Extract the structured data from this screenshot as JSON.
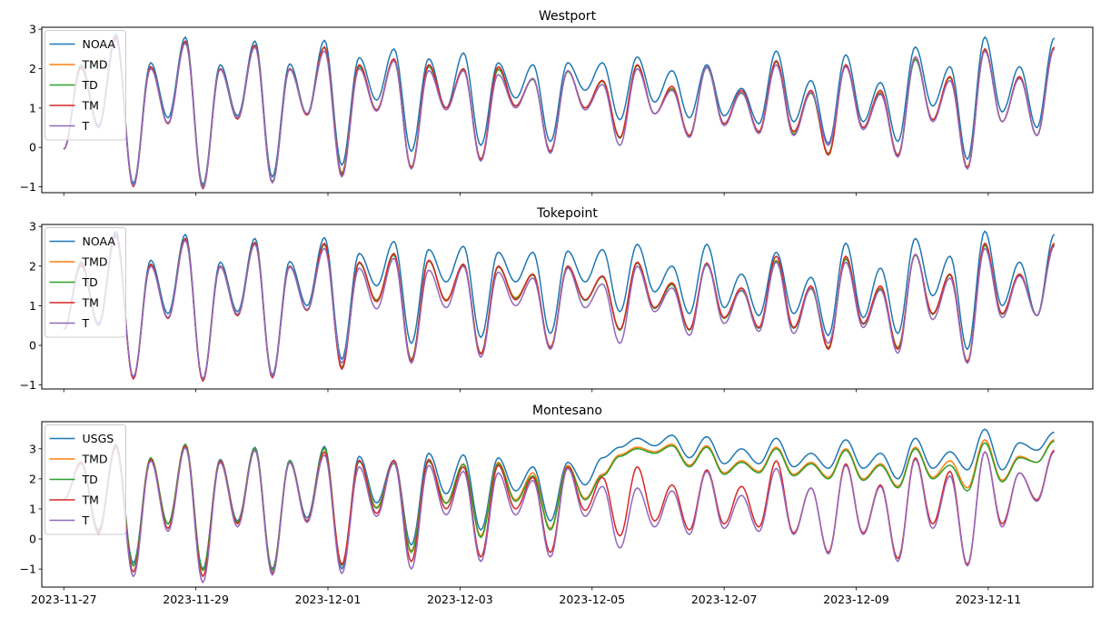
{
  "chart_data": [
    {
      "type": "line",
      "title": "Westport",
      "ylim": [
        -1.15,
        3.05
      ],
      "yticks": [
        -1,
        0,
        1,
        2,
        3
      ],
      "xlim": [
        "2023-11-26T16:00",
        "2023-12-12T14:00"
      ],
      "x_range": [
        "2023-11-27T00:00",
        "2023-12-12T00:00"
      ],
      "xtick_labels_shown": false,
      "legend_placement": "upper left",
      "colors": {
        "NOAA": "#1f77b4",
        "TMD": "#ff7f0e",
        "TD": "#2ca02c",
        "TM": "#d62728",
        "T": "#9467bd"
      },
      "series": [
        {
          "name": "NOAA",
          "peaks": [
            2.1,
            2.88,
            2.15,
            2.8,
            2.1,
            2.7,
            2.12,
            2.72,
            2.28,
            2.5,
            2.25,
            2.4,
            2.15,
            2.1,
            2.15,
            2.15,
            2.3,
            1.95,
            2.1,
            1.5,
            2.45,
            1.7,
            2.35,
            1.65,
            2.55,
            2.05,
            2.8,
            2.05,
            2.78
          ],
          "troughs": [
            -0.05,
            0.55,
            -0.92,
            0.75,
            -0.95,
            0.8,
            -0.75,
            0.85,
            -0.45,
            1.2,
            -0.1,
            1.0,
            0.05,
            1.25,
            0.15,
            1.45,
            0.7,
            1.15,
            0.75,
            0.8,
            0.6,
            0.65,
            0.1,
            0.65,
            0.15,
            1.05,
            -0.3,
            0.9,
            0.5
          ]
        },
        {
          "name": "TMD",
          "peaks": [
            2.05,
            2.8,
            2.05,
            2.7,
            2.0,
            2.6,
            2.0,
            2.55,
            2.1,
            2.25,
            2.1,
            2.0,
            2.0,
            1.75,
            1.95,
            1.7,
            2.1,
            1.5,
            2.05,
            1.4,
            2.2,
            1.4,
            2.1,
            1.4,
            2.25,
            1.8,
            2.5,
            1.8,
            2.55
          ],
          "troughs": [
            -0.05,
            0.5,
            -0.98,
            0.6,
            -1.0,
            0.72,
            -0.88,
            0.82,
            -0.65,
            0.95,
            -0.5,
            1.0,
            -0.3,
            1.05,
            -0.1,
            1.0,
            0.25,
            0.85,
            0.3,
            0.6,
            0.4,
            0.35,
            -0.15,
            0.5,
            -0.2,
            0.7,
            -0.5,
            0.65,
            0.3
          ]
        },
        {
          "name": "TD",
          "peaks": [
            2.05,
            2.8,
            2.05,
            2.7,
            2.0,
            2.6,
            2.0,
            2.55,
            2.05,
            2.2,
            2.05,
            1.98,
            1.98,
            1.73,
            1.93,
            1.68,
            2.08,
            1.48,
            2.03,
            1.38,
            2.18,
            1.38,
            2.08,
            1.38,
            2.23,
            1.78,
            2.48,
            1.78,
            2.53
          ],
          "troughs": [
            -0.05,
            0.5,
            -0.98,
            0.6,
            -1.0,
            0.72,
            -0.88,
            0.82,
            -0.67,
            0.95,
            -0.52,
            1.0,
            -0.32,
            1.05,
            -0.12,
            1.0,
            0.23,
            0.85,
            0.28,
            0.6,
            0.38,
            0.33,
            -0.17,
            0.5,
            -0.22,
            0.7,
            -0.52,
            0.65,
            0.3
          ]
        },
        {
          "name": "TM",
          "peaks": [
            2.05,
            2.8,
            2.05,
            2.7,
            2.0,
            2.6,
            2.0,
            2.55,
            2.1,
            2.25,
            2.1,
            2.0,
            2.05,
            1.75,
            1.95,
            1.7,
            2.1,
            1.55,
            2.05,
            1.45,
            2.2,
            1.45,
            2.1,
            1.45,
            2.3,
            1.8,
            2.5,
            1.8,
            2.55
          ],
          "troughs": [
            -0.05,
            0.5,
            -1.0,
            0.6,
            -1.05,
            0.72,
            -0.9,
            0.82,
            -0.7,
            0.95,
            -0.52,
            1.0,
            -0.3,
            1.05,
            -0.1,
            1.0,
            0.25,
            0.85,
            0.3,
            0.6,
            0.4,
            0.4,
            -0.2,
            0.5,
            -0.2,
            0.7,
            -0.52,
            0.65,
            0.3
          ]
        },
        {
          "name": "T",
          "peaks": [
            2.0,
            2.75,
            2.0,
            2.65,
            1.98,
            2.55,
            1.98,
            2.45,
            2.0,
            2.2,
            1.95,
            1.95,
            1.85,
            1.75,
            1.95,
            1.6,
            2.0,
            1.45,
            2.05,
            1.4,
            2.1,
            1.4,
            2.05,
            1.35,
            2.3,
            1.7,
            2.45,
            1.75,
            2.5
          ],
          "troughs": [
            -0.05,
            0.5,
            -0.98,
            0.62,
            -1.02,
            0.75,
            -0.9,
            0.85,
            -0.75,
            0.92,
            -0.55,
            0.95,
            -0.35,
            1.0,
            -0.15,
            0.95,
            0.05,
            0.85,
            0.25,
            0.55,
            0.35,
            0.3,
            0.05,
            0.45,
            -0.25,
            0.65,
            -0.55,
            0.65,
            0.3
          ]
        }
      ]
    },
    {
      "type": "line",
      "title": "Tokepoint",
      "ylim": [
        -1.1,
        3.05
      ],
      "yticks": [
        -1,
        0,
        1,
        2,
        3
      ],
      "xlim": [
        "2023-11-26T16:00",
        "2023-12-12T14:00"
      ],
      "x_range": [
        "2023-11-27T00:00",
        "2023-12-12T00:00"
      ],
      "xtick_labels_shown": false,
      "legend_placement": "upper left",
      "colors": {
        "NOAA": "#1f77b4",
        "TMD": "#ff7f0e",
        "TD": "#2ca02c",
        "TM": "#d62728",
        "T": "#9467bd"
      },
      "series": [
        {
          "name": "NOAA",
          "peaks": [
            2.1,
            2.88,
            2.15,
            2.8,
            2.1,
            2.7,
            2.12,
            2.72,
            2.32,
            2.62,
            2.42,
            2.5,
            2.35,
            2.35,
            2.38,
            2.42,
            2.55,
            2.0,
            2.55,
            1.8,
            2.35,
            1.72,
            2.58,
            1.95,
            2.7,
            2.25,
            2.88,
            2.1,
            2.8
          ],
          "troughs": [
            0.4,
            0.55,
            -0.8,
            0.8,
            -0.85,
            0.85,
            -0.75,
            1.0,
            -0.35,
            1.5,
            0.05,
            1.6,
            0.2,
            1.6,
            0.3,
            1.6,
            0.85,
            1.35,
            0.8,
            0.95,
            0.75,
            0.8,
            0.25,
            0.7,
            0.3,
            1.25,
            -0.1,
            1.0,
            0.75
          ]
        },
        {
          "name": "TMD",
          "peaks": [
            2.05,
            2.8,
            2.05,
            2.7,
            2.0,
            2.6,
            2.0,
            2.55,
            2.1,
            2.3,
            2.15,
            2.05,
            2.0,
            1.8,
            2.0,
            1.75,
            2.1,
            1.55,
            2.05,
            1.4,
            2.15,
            1.45,
            2.2,
            1.45,
            2.3,
            1.8,
            2.55,
            1.8,
            2.55
          ],
          "troughs": [
            0.4,
            0.5,
            -0.82,
            0.68,
            -0.88,
            0.75,
            -0.8,
            0.88,
            -0.55,
            1.15,
            -0.35,
            1.15,
            -0.2,
            1.2,
            -0.05,
            1.15,
            0.4,
            0.95,
            0.4,
            0.7,
            0.45,
            0.45,
            -0.05,
            0.55,
            -0.05,
            0.8,
            -0.4,
            0.8,
            0.75
          ]
        },
        {
          "name": "TD",
          "peaks": [
            2.05,
            2.8,
            2.05,
            2.7,
            2.0,
            2.6,
            2.0,
            2.55,
            2.08,
            2.28,
            2.13,
            2.03,
            1.98,
            1.78,
            1.98,
            1.73,
            2.08,
            1.53,
            2.03,
            1.38,
            2.13,
            1.43,
            2.18,
            1.43,
            2.28,
            1.78,
            2.53,
            1.78,
            2.53
          ],
          "troughs": [
            0.4,
            0.5,
            -0.82,
            0.68,
            -0.88,
            0.75,
            -0.8,
            0.88,
            -0.57,
            1.13,
            -0.37,
            1.13,
            -0.22,
            1.18,
            -0.07,
            1.13,
            0.38,
            0.93,
            0.38,
            0.68,
            0.43,
            0.43,
            -0.07,
            0.53,
            -0.07,
            0.78,
            -0.42,
            0.78,
            0.75
          ]
        },
        {
          "name": "TM",
          "peaks": [
            2.05,
            2.8,
            2.05,
            2.7,
            2.0,
            2.6,
            2.0,
            2.58,
            2.1,
            2.32,
            2.15,
            2.05,
            2.0,
            1.8,
            2.0,
            1.75,
            2.1,
            1.58,
            2.08,
            1.45,
            2.25,
            1.5,
            2.25,
            1.5,
            2.3,
            1.8,
            2.58,
            1.8,
            2.58
          ],
          "troughs": [
            0.4,
            0.5,
            -0.85,
            0.68,
            -0.9,
            0.75,
            -0.82,
            0.88,
            -0.6,
            1.1,
            -0.4,
            1.12,
            -0.22,
            1.15,
            -0.05,
            1.15,
            0.4,
            0.95,
            0.4,
            0.7,
            0.45,
            0.45,
            -0.1,
            0.55,
            -0.1,
            0.8,
            -0.42,
            0.8,
            0.75
          ]
        },
        {
          "name": "T",
          "peaks": [
            2.0,
            2.75,
            2.0,
            2.65,
            1.98,
            2.55,
            1.98,
            2.45,
            1.95,
            2.2,
            1.9,
            2.0,
            1.85,
            1.7,
            1.95,
            1.55,
            2.0,
            1.45,
            2.05,
            1.4,
            2.1,
            1.45,
            2.1,
            1.4,
            2.3,
            1.7,
            2.45,
            1.75,
            2.5
          ],
          "troughs": [
            0.4,
            0.52,
            -0.8,
            0.7,
            -0.85,
            0.78,
            -0.78,
            0.9,
            -0.45,
            0.92,
            -0.45,
            0.95,
            -0.3,
            1.0,
            -0.1,
            0.95,
            0.05,
            0.85,
            0.25,
            0.55,
            0.35,
            0.3,
            0.05,
            0.45,
            -0.2,
            0.65,
            -0.45,
            0.7,
            0.75
          ]
        }
      ]
    },
    {
      "type": "line",
      "title": "Montesano",
      "ylim": [
        -1.6,
        3.9
      ],
      "yticks": [
        -1,
        0,
        1,
        2,
        3
      ],
      "xlim": [
        "2023-11-26T16:00",
        "2023-12-12T14:00"
      ],
      "x_range": [
        "2023-11-27T00:00",
        "2023-12-12T00:00"
      ],
      "xtick_labels_shown": true,
      "xtick_labels": [
        "2023-11-27",
        "2023-11-29",
        "2023-12-01",
        "2023-12-03",
        "2023-12-05",
        "2023-12-07",
        "2023-12-09",
        "2023-12-11"
      ],
      "legend_placement": "upper left",
      "colors": {
        "USGS": "#1f77b4",
        "TMD": "#ff7f0e",
        "TD": "#2ca02c",
        "TM": "#d62728",
        "T": "#9467bd"
      },
      "series": [
        {
          "name": "USGS",
          "peaks": [
            2.55,
            3.15,
            2.7,
            3.15,
            2.65,
            3.05,
            2.62,
            3.08,
            2.75,
            2.62,
            2.85,
            2.8,
            2.7,
            2.4,
            2.55,
            2.7,
            3.35,
            3.45,
            3.4,
            3.0,
            3.35,
            2.85,
            3.3,
            2.85,
            3.35,
            2.9,
            3.65,
            3.2,
            3.55
          ],
          "troughs": [
            1.3,
            0.3,
            -0.8,
            0.5,
            -1.0,
            0.6,
            -1.0,
            0.7,
            -1.0,
            1.2,
            -0.2,
            1.5,
            0.3,
            1.6,
            0.6,
            1.8,
            3.05,
            3.1,
            2.7,
            2.5,
            2.5,
            2.4,
            2.35,
            2.35,
            2.0,
            2.35,
            2.3,
            2.3,
            2.95
          ]
        },
        {
          "name": "TMD",
          "peaks": [
            2.55,
            3.15,
            2.7,
            3.15,
            2.62,
            3.02,
            2.6,
            3.02,
            2.6,
            2.55,
            2.6,
            2.5,
            2.55,
            2.2,
            2.45,
            2.15,
            3.05,
            3.15,
            3.1,
            2.6,
            3.05,
            2.55,
            3.0,
            2.5,
            3.05,
            2.6,
            3.3,
            2.75,
            3.3
          ],
          "troughs": [
            1.3,
            0.25,
            -0.9,
            0.5,
            -1.05,
            0.55,
            -1.05,
            0.6,
            -0.85,
            1.05,
            -0.4,
            1.2,
            0.1,
            1.3,
            0.35,
            1.35,
            2.8,
            2.9,
            2.45,
            2.2,
            2.25,
            2.15,
            2.05,
            2.0,
            1.75,
            2.05,
            1.7,
            1.95,
            2.55
          ]
        },
        {
          "name": "TD",
          "peaks": [
            2.55,
            3.15,
            2.7,
            3.15,
            2.62,
            3.02,
            2.6,
            3.02,
            2.58,
            2.52,
            2.58,
            2.48,
            2.5,
            2.1,
            2.4,
            2.1,
            3.0,
            3.1,
            3.05,
            2.55,
            3.0,
            2.5,
            2.95,
            2.45,
            3.0,
            2.45,
            3.2,
            2.7,
            3.25
          ],
          "troughs": [
            1.3,
            0.25,
            -0.9,
            0.5,
            -1.05,
            0.55,
            -1.05,
            0.6,
            -0.88,
            1.02,
            -0.45,
            1.18,
            0.05,
            1.25,
            0.3,
            1.3,
            2.75,
            2.85,
            2.4,
            2.15,
            2.2,
            2.1,
            2.0,
            1.95,
            1.7,
            2.0,
            1.6,
            1.9,
            2.55
          ]
        },
        {
          "name": "TM",
          "peaks": [
            2.55,
            3.1,
            2.65,
            3.1,
            2.6,
            2.95,
            2.55,
            2.9,
            2.62,
            2.62,
            2.65,
            2.4,
            2.45,
            2.05,
            2.4,
            2.05,
            2.4,
            1.8,
            2.3,
            1.75,
            2.6,
            1.7,
            2.5,
            1.8,
            2.7,
            2.25,
            2.9,
            2.2,
            2.95
          ],
          "troughs": [
            1.3,
            0.2,
            -1.1,
            0.35,
            -1.25,
            0.5,
            -1.15,
            0.6,
            -0.85,
            0.85,
            -0.75,
            1.0,
            -0.6,
            1.0,
            -0.45,
            0.95,
            0.1,
            0.6,
            0.3,
            0.5,
            0.4,
            0.2,
            -0.45,
            0.2,
            -0.65,
            0.5,
            -0.85,
            0.5,
            1.3
          ]
        },
        {
          "name": "T",
          "peaks": [
            2.5,
            3.05,
            2.6,
            3.05,
            2.55,
            2.95,
            2.55,
            2.8,
            2.4,
            2.55,
            2.45,
            2.25,
            2.2,
            1.95,
            2.35,
            1.75,
            1.7,
            1.6,
            2.25,
            1.45,
            2.35,
            1.7,
            2.45,
            1.75,
            2.65,
            2.1,
            2.9,
            2.2,
            2.9
          ],
          "troughs": [
            1.3,
            0.15,
            -1.25,
            0.25,
            -1.45,
            0.4,
            -1.2,
            0.55,
            -1.15,
            0.75,
            -1.0,
            0.8,
            -0.75,
            0.8,
            -0.6,
            0.75,
            -0.3,
            0.4,
            0.15,
            0.35,
            0.25,
            0.15,
            -0.5,
            0.15,
            -0.75,
            0.35,
            -0.9,
            0.4,
            1.25
          ]
        }
      ]
    }
  ]
}
